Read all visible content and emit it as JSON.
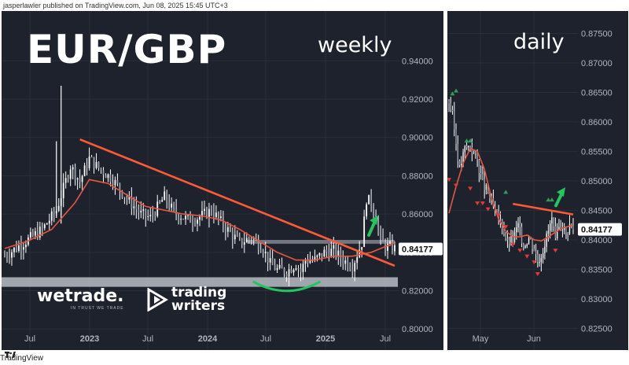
{
  "header": {
    "attribution": "jasperlawler published on TradingView.com, Jun 08, 2025 15:45 UTC+3"
  },
  "footer": {
    "brand": "TradingView"
  },
  "overlay": {
    "pair_title": "EUR/GBP",
    "brand_wetrade": "wetrade.",
    "brand_wetrade_tagline": "IN TRUST WE TRADE",
    "brand_tw_line1": "trading",
    "brand_tw_line2": "writers"
  },
  "colors": {
    "background": "#1e222d",
    "candle": "#ffffff",
    "trendline": "#ff5a36",
    "moving_average": "#e8553f",
    "support_zone": "#b7bcc6",
    "base_curve": "#22c55e",
    "arrow_up": "#22c55e",
    "marker_up": "#2e9e5b",
    "marker_down": "#e53935",
    "price_badge": "#ffffff"
  },
  "chart_data": [
    {
      "type": "candlestick",
      "title": "weekly",
      "symbol": "EUR/GBP",
      "current_price": "0.84177",
      "y_ticks": [
        "0.94000",
        "0.92000",
        "0.90000",
        "0.88000",
        "0.86000",
        "0.84000",
        "0.82000",
        "0.80000"
      ],
      "ylim": [
        0.789,
        0.966
      ],
      "x_ticks": [
        "Jul",
        "2023",
        "Jul",
        "2024",
        "Jul",
        "2025",
        "Jul"
      ],
      "grid": true,
      "trend_shape": {
        "x": [
          0,
          8,
          16,
          22,
          28,
          32,
          36,
          40,
          46,
          52,
          58,
          62,
          68,
          72,
          78,
          82,
          88,
          94,
          100,
          105,
          110,
          113,
          116,
          120,
          124,
          126,
          128,
          132,
          136,
          140,
          144,
          148,
          152,
          154,
          156,
          158,
          160,
          162,
          164,
          166
        ],
        "y": [
          0.838,
          0.845,
          0.852,
          0.862,
          0.885,
          0.877,
          0.889,
          0.884,
          0.878,
          0.868,
          0.86,
          0.858,
          0.869,
          0.861,
          0.857,
          0.858,
          0.862,
          0.853,
          0.845,
          0.848,
          0.842,
          0.834,
          0.831,
          0.83,
          0.834,
          0.83,
          0.836,
          0.836,
          0.84,
          0.841,
          0.836,
          0.833,
          0.845,
          0.868,
          0.866,
          0.858,
          0.846,
          0.843,
          0.843,
          0.842
        ]
      },
      "annotations": {
        "trendline": {
          "from": [
            32,
            0.899
          ],
          "to": [
            166,
            0.833
          ]
        },
        "moving_average": {
          "x": [
            0,
            10,
            20,
            30,
            36,
            44,
            52,
            60,
            68,
            76,
            84,
            92,
            100,
            108,
            116,
            124,
            132,
            140,
            148,
            156,
            162,
            166
          ],
          "y": [
            0.842,
            0.846,
            0.852,
            0.866,
            0.878,
            0.876,
            0.87,
            0.864,
            0.862,
            0.86,
            0.859,
            0.857,
            0.852,
            0.846,
            0.84,
            0.836,
            0.836,
            0.838,
            0.838,
            0.84,
            0.843,
            0.845
          ]
        },
        "support_zone": [
          0.822,
          0.827
        ],
        "resistance_band": {
          "x": [
            103,
            166
          ],
          "y": [
            0.8445,
            0.8465
          ]
        },
        "base_curve": {
          "x": [
            106,
            134
          ],
          "y_top": 0.827,
          "depth": 0.006
        },
        "arrow": {
          "x": 155,
          "y": [
            0.849,
            0.858
          ]
        }
      }
    },
    {
      "type": "candlestick",
      "title": "daily",
      "current_price": "0.84177",
      "y_ticks": [
        "0.87500",
        "0.87000",
        "0.86500",
        "0.86000",
        "0.85500",
        "0.85000",
        "0.84500",
        "0.84000",
        "0.83500",
        "0.83000",
        "0.82500"
      ],
      "ylim": [
        0.8213,
        0.8788
      ],
      "x_ticks": [
        "May",
        "Jun"
      ],
      "grid": true,
      "trend_shape": {
        "x": [
          0,
          2,
          4,
          6,
          9,
          12,
          16,
          19,
          22,
          26,
          30,
          33,
          36,
          39,
          42,
          45,
          48,
          50,
          52,
          55,
          58,
          60,
          62,
          64,
          66,
          68,
          70
        ],
        "y": [
          0.8635,
          0.861,
          0.8565,
          0.852,
          0.8555,
          0.856,
          0.8535,
          0.8495,
          0.848,
          0.8445,
          0.8425,
          0.8395,
          0.84,
          0.8425,
          0.839,
          0.8405,
          0.8385,
          0.8365,
          0.8375,
          0.8405,
          0.8435,
          0.8395,
          0.842,
          0.8425,
          0.841,
          0.8425,
          0.842
        ]
      },
      "annotations": {
        "moving_average": {
          "x": [
            0,
            4,
            8,
            12,
            16,
            20,
            24,
            28,
            32,
            36,
            40,
            44,
            48,
            52,
            56,
            60,
            64,
            70
          ],
          "y": [
            0.8445,
            0.849,
            0.853,
            0.8555,
            0.855,
            0.852,
            0.847,
            0.8435,
            0.8415,
            0.8405,
            0.8405,
            0.8408,
            0.84,
            0.8398,
            0.8405,
            0.8413,
            0.842,
            0.8425
          ]
        },
        "trendline": {
          "from": [
            36,
            0.8461
          ],
          "to": [
            70,
            0.8443
          ]
        },
        "arrow": {
          "x": 70,
          "y": [
            0.8458,
            0.8485
          ]
        },
        "up_markers": [
          [
            2,
            0.8645
          ],
          [
            4,
            0.865
          ],
          [
            10,
            0.8565
          ],
          [
            12,
            0.8565
          ],
          [
            32,
            0.8478
          ],
          [
            56,
            0.8465
          ],
          [
            58,
            0.8465
          ]
        ],
        "down_markers": [
          [
            0,
            0.8505
          ],
          [
            4,
            0.8495
          ],
          [
            12,
            0.849
          ],
          [
            16,
            0.8465
          ],
          [
            19,
            0.8465
          ],
          [
            22,
            0.8455
          ],
          [
            28,
            0.8445
          ],
          [
            32,
            0.8425
          ],
          [
            36,
            0.8395
          ],
          [
            40,
            0.8385
          ],
          [
            44,
            0.8375
          ],
          [
            48,
            0.8365
          ],
          [
            50,
            0.8345
          ],
          [
            60,
            0.8385
          ]
        ]
      }
    }
  ]
}
